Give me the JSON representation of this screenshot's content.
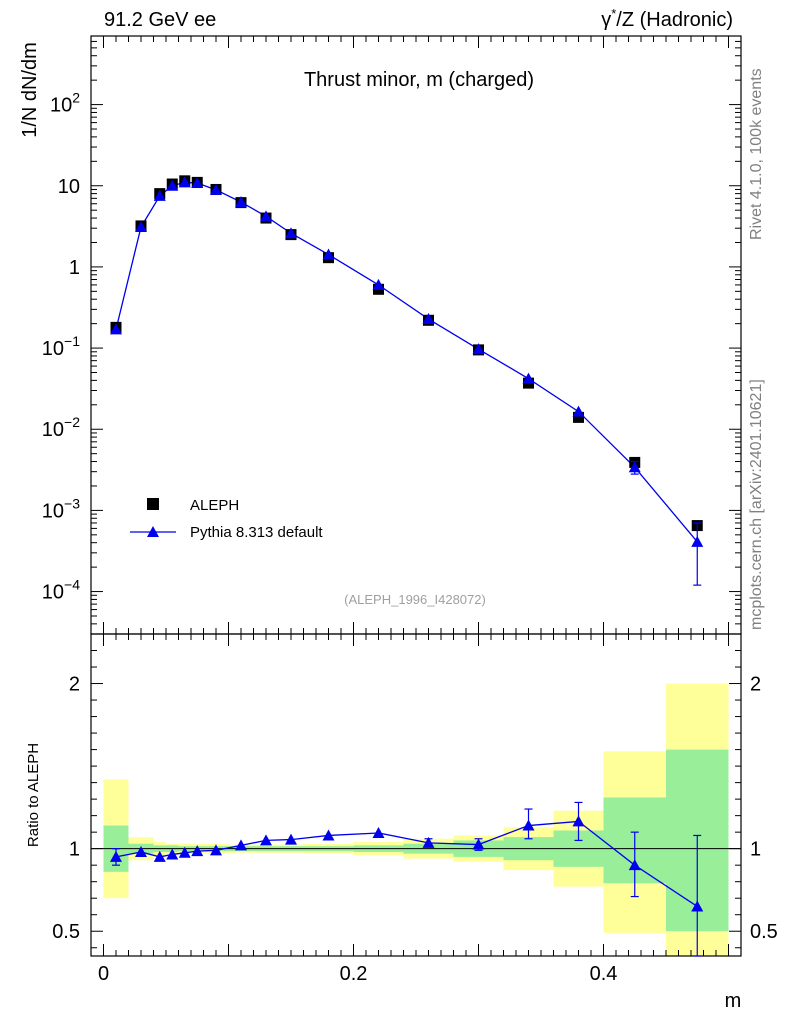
{
  "header": {
    "left": "91.2 GeV ee",
    "right_sup": "*",
    "right_pre": "γ",
    "right_post": "/Z (Hadronic)"
  },
  "side": {
    "rivet": "Rivet 4.1.0,  100k events",
    "mcplots": "mcplots.cern.ch [arXiv:2401.10621]"
  },
  "chart_data": {
    "type": "line",
    "title": "Thrust minor, m (charged)",
    "xlabel": "m",
    "ylabel": "1/N  dN/dm",
    "ratio_ylabel": "Ratio to ALEPH",
    "analysis_tag": "(ALEPH_1996_I428072)",
    "xlim": [
      -0.01,
      0.51
    ],
    "ylim": [
      3e-05,
      700
    ],
    "ratio_ylim": [
      0.35,
      2.3
    ],
    "x_ticks": [
      0,
      0.2,
      0.4
    ],
    "x_tick_labels": [
      "0",
      "0.2",
      "0.4"
    ],
    "y_ticks": [
      {
        "v": 0.0001,
        "m": "10",
        "e": "−4"
      },
      {
        "v": 0.001,
        "m": "10",
        "e": "−3"
      },
      {
        "v": 0.01,
        "m": "10",
        "e": "−2"
      },
      {
        "v": 0.1,
        "m": "10",
        "e": "−1"
      },
      {
        "v": 1,
        "m": "1",
        "e": ""
      },
      {
        "v": 10,
        "m": "10",
        "e": ""
      },
      {
        "v": 100,
        "m": "10",
        "e": "2"
      }
    ],
    "ratio_ticks": [
      0.5,
      1,
      2
    ],
    "ratio_tick_labels": [
      "0.5",
      "1",
      "2"
    ],
    "legend": {
      "data_label": "ALEPH",
      "mc_label": "Pythia 8.313 default",
      "position": "bottom-left"
    },
    "colors": {
      "mc": "#0000ee",
      "band_inner": "#99ee99",
      "band_outer": "#ffff99",
      "data": "#000000"
    },
    "bins": [
      [
        0.0,
        0.02
      ],
      [
        0.02,
        0.04
      ],
      [
        0.04,
        0.05
      ],
      [
        0.05,
        0.06
      ],
      [
        0.06,
        0.07
      ],
      [
        0.07,
        0.08
      ],
      [
        0.08,
        0.1
      ],
      [
        0.1,
        0.12
      ],
      [
        0.12,
        0.14
      ],
      [
        0.14,
        0.16
      ],
      [
        0.16,
        0.2
      ],
      [
        0.2,
        0.24
      ],
      [
        0.24,
        0.28
      ],
      [
        0.28,
        0.32
      ],
      [
        0.32,
        0.36
      ],
      [
        0.36,
        0.4
      ],
      [
        0.4,
        0.45
      ],
      [
        0.45,
        0.5
      ]
    ],
    "x": [
      0.01,
      0.03,
      0.045,
      0.055,
      0.065,
      0.075,
      0.09,
      0.11,
      0.13,
      0.15,
      0.18,
      0.22,
      0.26,
      0.3,
      0.34,
      0.38,
      0.425,
      0.475
    ],
    "data_values": [
      0.18,
      3.2,
      8.0,
      10.5,
      11.5,
      11.0,
      9.0,
      6.2,
      4.0,
      2.5,
      1.3,
      0.53,
      0.22,
      0.095,
      0.037,
      0.014,
      0.0039,
      0.00065
    ],
    "mc_values": [
      0.17,
      3.1,
      7.5,
      10.0,
      11.0,
      10.8,
      8.9,
      6.3,
      4.2,
      2.6,
      1.42,
      0.6,
      0.228,
      0.097,
      0.042,
      0.0165,
      0.0034,
      0.00041
    ],
    "mc_err_low": [
      0,
      0,
      0,
      0,
      0,
      0,
      0,
      0,
      0,
      0,
      0,
      0,
      0,
      0,
      0,
      0,
      0.0028,
      0.00012
    ],
    "mc_err_high": [
      0,
      0,
      0,
      0,
      0,
      0,
      0,
      0,
      0,
      0,
      0,
      0,
      0,
      0,
      0,
      0,
      0.004,
      0.0007
    ],
    "ratio_values": [
      0.95,
      0.98,
      0.95,
      0.965,
      0.975,
      0.985,
      0.99,
      1.02,
      1.05,
      1.055,
      1.08,
      1.095,
      1.035,
      1.025,
      1.14,
      1.165,
      0.9,
      0.65
    ],
    "ratio_err_low": [
      0.9,
      0.97,
      0.94,
      0.955,
      0.965,
      0.975,
      0.98,
      1.01,
      1.04,
      1.045,
      1.07,
      1.085,
      1.01,
      0.99,
      1.06,
      1.05,
      0.71,
      0.35
    ],
    "ratio_err_high": [
      1.0,
      0.99,
      0.96,
      0.975,
      0.985,
      0.995,
      1.0,
      1.03,
      1.06,
      1.065,
      1.09,
      1.105,
      1.06,
      1.06,
      1.24,
      1.28,
      1.1,
      1.08
    ],
    "band_inner_low": [
      0.86,
      0.97,
      0.98,
      0.98,
      0.985,
      0.985,
      0.985,
      0.985,
      0.985,
      0.985,
      0.985,
      0.98,
      0.97,
      0.95,
      0.93,
      0.89,
      0.79,
      0.5
    ],
    "band_inner_high": [
      1.14,
      1.03,
      1.02,
      1.02,
      1.015,
      1.015,
      1.015,
      1.015,
      1.015,
      1.015,
      1.015,
      1.02,
      1.03,
      1.05,
      1.07,
      1.11,
      1.31,
      1.6
    ],
    "band_outer_low": [
      0.7,
      0.93,
      0.96,
      0.97,
      0.97,
      0.97,
      0.97,
      0.975,
      0.975,
      0.975,
      0.97,
      0.96,
      0.94,
      0.92,
      0.87,
      0.77,
      0.49,
      0.33
    ],
    "band_outer_high": [
      1.42,
      1.07,
      1.04,
      1.03,
      1.03,
      1.03,
      1.03,
      1.025,
      1.025,
      1.025,
      1.03,
      1.04,
      1.06,
      1.08,
      1.13,
      1.23,
      1.59,
      2.0
    ]
  }
}
